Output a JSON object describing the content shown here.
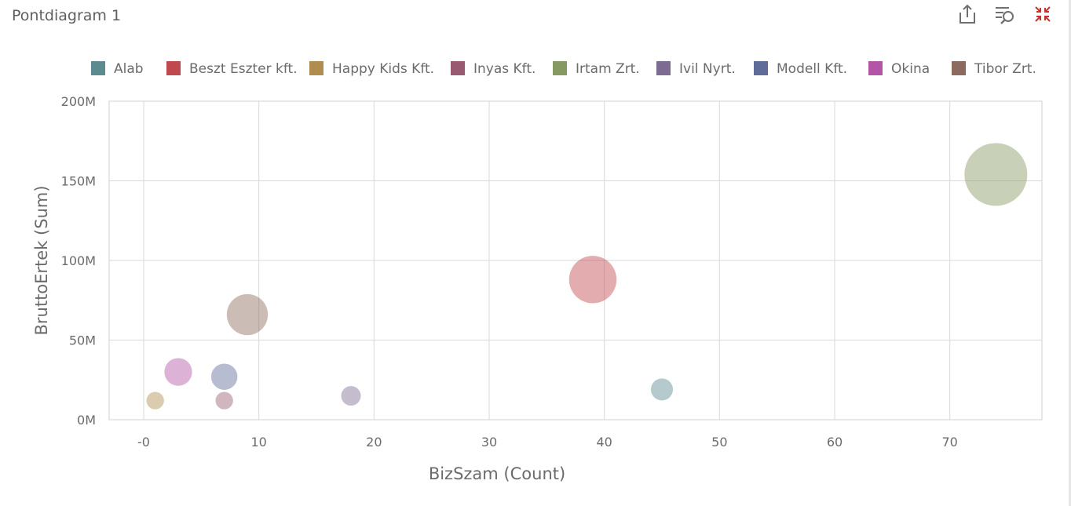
{
  "panel": {
    "title": "Pontdiagram 1"
  },
  "toolbar": {
    "export_icon": "export-icon",
    "inspect_icon": "inspect-data-icon",
    "restore_icon": "restore-minimize-icon",
    "restore_color": "#c9302c",
    "icon_color": "#707070"
  },
  "chart_data": {
    "type": "scatter",
    "title": "",
    "xlabel": "BizSzam (Count)",
    "ylabel": "BruttoErtek (Sum)",
    "xlim": [
      -3,
      78
    ],
    "ylim": [
      0,
      200000000
    ],
    "xticks": [
      0,
      10,
      20,
      30,
      40,
      50,
      60,
      70
    ],
    "xtick_labels": [
      "-0",
      "10",
      "20",
      "30",
      "40",
      "50",
      "60",
      "70"
    ],
    "yticks": [
      0,
      50000000,
      100000000,
      150000000,
      200000000
    ],
    "ytick_labels": [
      "0M",
      "50M",
      "100M",
      "150M",
      "200M"
    ],
    "grid": true,
    "legend_position": "top",
    "bubble": true,
    "series": [
      {
        "name": "Alab",
        "color": "#5b8a91",
        "x": 45,
        "y": 19000000,
        "size": 19000000
      },
      {
        "name": "Beszt Eszter kft.",
        "color": "#c0494e",
        "x": 39,
        "y": 88000000,
        "size": 88000000
      },
      {
        "name": "Happy Kids Kft.",
        "color": "#b08c4e",
        "x": 1,
        "y": 12000000,
        "size": 12000000
      },
      {
        "name": "Inyas Kft.",
        "color": "#985a70",
        "x": 7,
        "y": 12000000,
        "size": 12000000
      },
      {
        "name": "Irtam Zrt.",
        "color": "#869962",
        "x": 74,
        "y": 154000000,
        "size": 154000000
      },
      {
        "name": "Ivil Nyrt.",
        "color": "#7e6b92",
        "x": 18,
        "y": 15000000,
        "size": 15000000
      },
      {
        "name": "Modell Kft.",
        "color": "#5f6b98",
        "x": 7,
        "y": 27000000,
        "size": 27000000
      },
      {
        "name": "Okina",
        "color": "#b354a6",
        "x": 3,
        "y": 30000000,
        "size": 30000000
      },
      {
        "name": "Tibor Zrt.",
        "color": "#8c6a5d",
        "x": 9,
        "y": 66000000,
        "size": 66000000
      }
    ]
  }
}
